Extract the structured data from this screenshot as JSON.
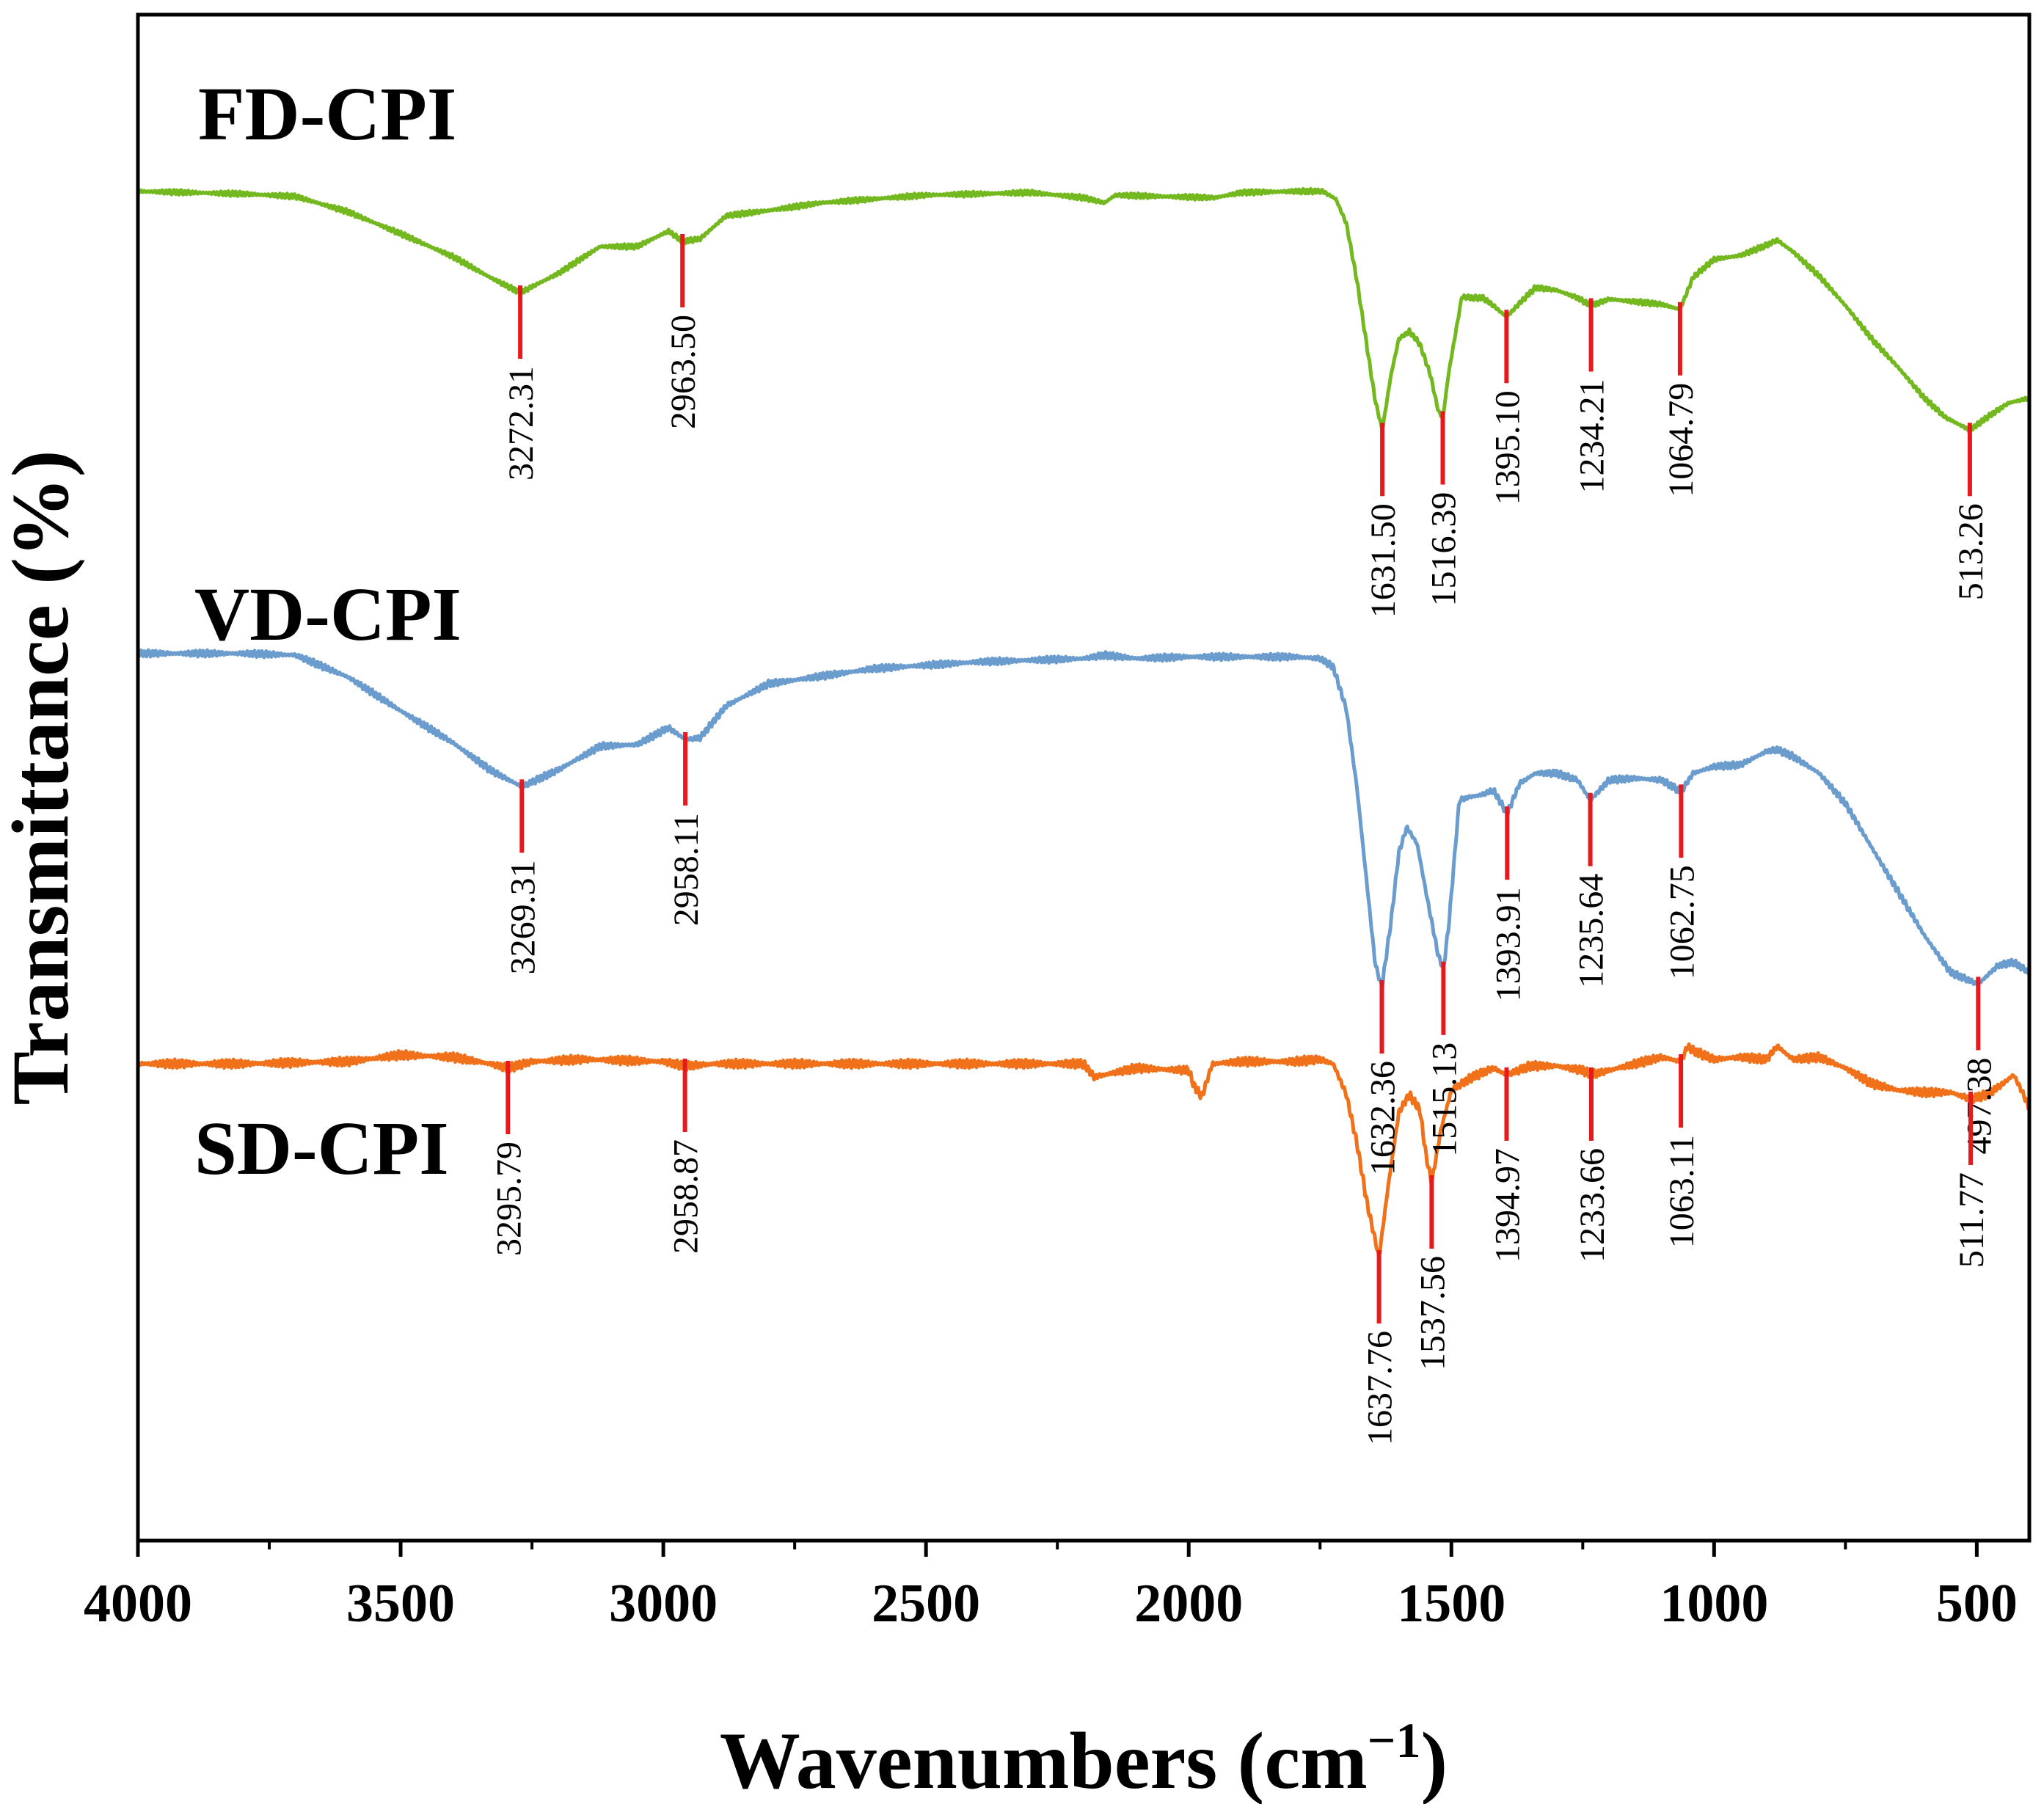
{
  "chart_data": {
    "type": "line",
    "title": "",
    "xlabel": "Wavenumbers (cm",
    "xlabel_sup": "−1",
    "xlabel_close": ")",
    "ylabel": "Transmittance (%)",
    "xlim": [
      4000,
      400
    ],
    "xticks": [
      4000,
      3500,
      3000,
      2500,
      2000,
      1500,
      1000,
      500
    ],
    "yticks_shown": false,
    "peak_marker_color": "#e8191c",
    "series": [
      {
        "name": "FD-CPI",
        "color": "#72b81e",
        "points": [
          [
            4000,
            0.91
          ],
          [
            3900,
            0.9
          ],
          [
            3800,
            0.89
          ],
          [
            3700,
            0.87
          ],
          [
            3600,
            0.75
          ],
          [
            3500,
            0.58
          ],
          [
            3400,
            0.4
          ],
          [
            3330,
            0.24
          ],
          [
            3272.31,
            0.12
          ],
          [
            3200,
            0.27
          ],
          [
            3120,
            0.48
          ],
          [
            3050,
            0.48
          ],
          [
            2990,
            0.6
          ],
          [
            2963.5,
            0.52
          ],
          [
            2930,
            0.54
          ],
          [
            2880,
            0.72
          ],
          [
            2800,
            0.76
          ],
          [
            2700,
            0.82
          ],
          [
            2500,
            0.88
          ],
          [
            2300,
            0.9
          ],
          [
            2200,
            0.86
          ],
          [
            2160,
            0.82
          ],
          [
            2140,
            0.88
          ],
          [
            2050,
            0.87
          ],
          [
            1950,
            0.86
          ],
          [
            1900,
            0.9
          ],
          [
            1800,
            0.91
          ],
          [
            1745,
            0.91
          ],
          [
            1720,
            0.85
          ],
          [
            1700,
            0.66
          ],
          [
            1680,
            0.22
          ],
          [
            1660,
            -0.32
          ],
          [
            1645,
            -0.72
          ],
          [
            1631.5,
            -0.95
          ],
          [
            1615,
            -0.52
          ],
          [
            1600,
            -0.24
          ],
          [
            1580,
            -0.18
          ],
          [
            1560,
            -0.28
          ],
          [
            1540,
            -0.52
          ],
          [
            1525,
            -0.8
          ],
          [
            1516.39,
            -0.86
          ],
          [
            1505,
            -0.5
          ],
          [
            1480,
            0.09
          ],
          [
            1460,
            0.08
          ],
          [
            1440,
            0.08
          ],
          [
            1420,
            0.02
          ],
          [
            1395.1,
            -0.07
          ],
          [
            1370,
            0.04
          ],
          [
            1340,
            0.16
          ],
          [
            1300,
            0.14
          ],
          [
            1260,
            0.08
          ],
          [
            1234.21,
            0.02
          ],
          [
            1200,
            0.07
          ],
          [
            1150,
            0.05
          ],
          [
            1100,
            0.03
          ],
          [
            1064.79,
            -0.01
          ],
          [
            1040,
            0.24
          ],
          [
            1000,
            0.38
          ],
          [
            950,
            0.41
          ],
          [
            900,
            0.49
          ],
          [
            880,
            0.53
          ],
          [
            850,
            0.44
          ],
          [
            800,
            0.25
          ],
          [
            750,
            0.02
          ],
          [
            700,
            -0.24
          ],
          [
            650,
            -0.46
          ],
          [
            600,
            -0.7
          ],
          [
            560,
            -0.85
          ],
          [
            513.26,
            -0.95
          ],
          [
            480,
            -0.85
          ],
          [
            440,
            -0.74
          ],
          [
            400,
            -0.7
          ]
        ],
        "peaks": [
          3272.31,
          2963.5,
          1631.5,
          1516.39,
          1395.1,
          1234.21,
          1064.79,
          513.26
        ],
        "peak_labels": [
          "3272.31",
          "2963.50",
          "1631.50",
          "1516.39",
          "1395.10",
          "1234.21",
          "1064.79",
          "513.26"
        ],
        "peak_label_side": [
          "below",
          "below",
          "below",
          "below",
          "below",
          "below",
          "below",
          "below"
        ]
      },
      {
        "name": "VD-CPI",
        "color": "#6b9cce",
        "points": [
          [
            4000,
            0.91
          ],
          [
            3900,
            0.91
          ],
          [
            3800,
            0.91
          ],
          [
            3700,
            0.9
          ],
          [
            3600,
            0.77
          ],
          [
            3500,
            0.57
          ],
          [
            3400,
            0.38
          ],
          [
            3330,
            0.22
          ],
          [
            3269.31,
            0.12
          ],
          [
            3200,
            0.22
          ],
          [
            3120,
            0.36
          ],
          [
            3050,
            0.37
          ],
          [
            2990,
            0.47
          ],
          [
            2958.11,
            0.4
          ],
          [
            2930,
            0.41
          ],
          [
            2880,
            0.6
          ],
          [
            2800,
            0.73
          ],
          [
            2600,
            0.82
          ],
          [
            2400,
            0.86
          ],
          [
            2200,
            0.88
          ],
          [
            2160,
            0.9
          ],
          [
            2100,
            0.88
          ],
          [
            2000,
            0.89
          ],
          [
            1900,
            0.89
          ],
          [
            1800,
            0.89
          ],
          [
            1750,
            0.88
          ],
          [
            1725,
            0.83
          ],
          [
            1700,
            0.58
          ],
          [
            1680,
            0.12
          ],
          [
            1660,
            -0.48
          ],
          [
            1645,
            -0.93
          ],
          [
            1632.36,
            -1.07
          ],
          [
            1615,
            -0.68
          ],
          [
            1600,
            -0.27
          ],
          [
            1585,
            -0.12
          ],
          [
            1565,
            -0.22
          ],
          [
            1545,
            -0.56
          ],
          [
            1525,
            -0.88
          ],
          [
            1515.13,
            -0.96
          ],
          [
            1505,
            -0.7
          ],
          [
            1485,
            0.04
          ],
          [
            1465,
            0.06
          ],
          [
            1445,
            0.07
          ],
          [
            1420,
            0.1
          ],
          [
            1393.91,
            -0.04
          ],
          [
            1370,
            0.14
          ],
          [
            1340,
            0.2
          ],
          [
            1300,
            0.2
          ],
          [
            1260,
            0.16
          ],
          [
            1235.64,
            0.04
          ],
          [
            1200,
            0.16
          ],
          [
            1150,
            0.17
          ],
          [
            1100,
            0.16
          ],
          [
            1062.75,
            0.09
          ],
          [
            1040,
            0.2
          ],
          [
            1000,
            0.24
          ],
          [
            950,
            0.25
          ],
          [
            900,
            0.33
          ],
          [
            880,
            0.34
          ],
          [
            850,
            0.3
          ],
          [
            800,
            0.2
          ],
          [
            750,
            0.02
          ],
          [
            700,
            -0.24
          ],
          [
            650,
            -0.5
          ],
          [
            600,
            -0.76
          ],
          [
            550,
            -0.98
          ],
          [
            497.38,
            -1.05
          ],
          [
            460,
            -0.94
          ],
          [
            430,
            -0.92
          ],
          [
            400,
            -0.98
          ]
        ],
        "peaks": [
          3269.31,
          2958.11,
          1632.36,
          1515.13,
          1393.91,
          1235.64,
          1062.75,
          497.38
        ],
        "peak_labels": [
          "3269.31",
          "2958.11",
          "1632.36",
          "1515.13",
          "1393.91",
          "1235.64",
          "1062.75",
          "497.38"
        ],
        "peak_label_side": [
          "below",
          "below",
          "below",
          "below",
          "below",
          "below",
          "below",
          "below"
        ]
      },
      {
        "name": "SD-CPI",
        "color": "#f0711a",
        "points": [
          [
            4000,
            0.9
          ],
          [
            3800,
            0.9
          ],
          [
            3600,
            0.91
          ],
          [
            3500,
            0.94
          ],
          [
            3400,
            0.93
          ],
          [
            3330,
            0.9
          ],
          [
            3295.79,
            0.88
          ],
          [
            3250,
            0.91
          ],
          [
            3150,
            0.92
          ],
          [
            3000,
            0.91
          ],
          [
            2958.87,
            0.89
          ],
          [
            2900,
            0.9
          ],
          [
            2500,
            0.9
          ],
          [
            2200,
            0.9
          ],
          [
            2180,
            0.84
          ],
          [
            2100,
            0.88
          ],
          [
            2000,
            0.87
          ],
          [
            1990,
            0.8
          ],
          [
            1975,
            0.75
          ],
          [
            1955,
            0.9
          ],
          [
            1900,
            0.91
          ],
          [
            1800,
            0.91
          ],
          [
            1750,
            0.92
          ],
          [
            1725,
            0.9
          ],
          [
            1700,
            0.76
          ],
          [
            1680,
            0.54
          ],
          [
            1660,
            0.26
          ],
          [
            1637.76,
            0.02
          ],
          [
            1620,
            0.35
          ],
          [
            1600,
            0.68
          ],
          [
            1580,
            0.76
          ],
          [
            1560,
            0.69
          ],
          [
            1548,
            0.48
          ],
          [
            1537.56,
            0.36
          ],
          [
            1520,
            0.6
          ],
          [
            1500,
            0.78
          ],
          [
            1460,
            0.84
          ],
          [
            1420,
            0.88
          ],
          [
            1394.97,
            0.85
          ],
          [
            1350,
            0.89
          ],
          [
            1300,
            0.89
          ],
          [
            1250,
            0.87
          ],
          [
            1233.66,
            0.85
          ],
          [
            1200,
            0.87
          ],
          [
            1150,
            0.9
          ],
          [
            1100,
            0.93
          ],
          [
            1063.11,
            0.91
          ],
          [
            1050,
            0.98
          ],
          [
            1040,
            0.96
          ],
          [
            1000,
            0.92
          ],
          [
            950,
            0.93
          ],
          [
            900,
            0.92
          ],
          [
            880,
            0.98
          ],
          [
            850,
            0.92
          ],
          [
            800,
            0.93
          ],
          [
            750,
            0.88
          ],
          [
            700,
            0.81
          ],
          [
            650,
            0.78
          ],
          [
            600,
            0.77
          ],
          [
            550,
            0.77
          ],
          [
            511.77,
            0.74
          ],
          [
            480,
            0.76
          ],
          [
            450,
            0.81
          ],
          [
            430,
            0.85
          ],
          [
            415,
            0.78
          ],
          [
            400,
            0.7
          ]
        ],
        "peaks": [
          3295.79,
          2958.87,
          1637.76,
          1537.56,
          1394.97,
          1233.66,
          1063.11,
          511.77
        ],
        "peak_labels": [
          "3295.79",
          "2958.87",
          "1637.76",
          "1537.56",
          "1394.97",
          "1233.66",
          "1063.11",
          "511.77"
        ],
        "peak_label_side": [
          "below",
          "below",
          "below",
          "below",
          "below",
          "below",
          "below",
          "below"
        ]
      }
    ]
  }
}
